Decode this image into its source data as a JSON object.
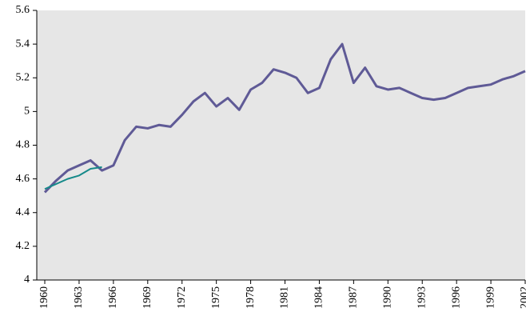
{
  "chart_data": {
    "type": "line",
    "x": [
      1960,
      1961,
      1962,
      1963,
      1964,
      1965,
      1966,
      1967,
      1968,
      1969,
      1970,
      1971,
      1972,
      1973,
      1974,
      1975,
      1976,
      1977,
      1978,
      1979,
      1980,
      1981,
      1982,
      1983,
      1984,
      1985,
      1986,
      1987,
      1988,
      1989,
      1990,
      1991,
      1992,
      1993,
      1994,
      1995,
      1996,
      1997,
      1998,
      1999,
      2000,
      2001,
      2002
    ],
    "series": [
      {
        "color": "#5f5a96",
        "values": [
          4.52,
          4.59,
          4.65,
          4.68,
          4.71,
          4.65,
          4.68,
          4.83,
          4.91,
          4.9,
          4.92,
          4.91,
          4.98,
          5.06,
          5.11,
          5.03,
          5.08,
          5.01,
          5.13,
          5.17,
          5.25,
          5.23,
          5.2,
          5.11,
          5.14,
          5.31,
          5.4,
          5.17,
          5.26,
          5.15,
          5.13,
          5.14,
          5.11,
          5.08,
          5.07,
          5.08,
          5.11,
          5.14,
          5.15,
          5.16,
          5.19,
          5.21,
          5.24
        ]
      },
      {
        "color": "#168a8a",
        "values": [
          4.54,
          4.57,
          4.6,
          4.62,
          4.66,
          4.67,
          null,
          null,
          null,
          null,
          null,
          null,
          null,
          null,
          null,
          null,
          null,
          null,
          null,
          null,
          null,
          null,
          null,
          null,
          null,
          null,
          null,
          null,
          null,
          null,
          null,
          null,
          null,
          null,
          null,
          null,
          null,
          null,
          null,
          null,
          null,
          null,
          null
        ]
      }
    ],
    "xlim": [
      1959.3,
      2002
    ],
    "xticks": [
      1960,
      1963,
      1966,
      1969,
      1972,
      1975,
      1978,
      1981,
      1984,
      1987,
      1990,
      1993,
      1996,
      1999,
      2002
    ],
    "ylim": [
      4,
      5.6
    ],
    "yticks": [
      4,
      4.2,
      4.4,
      4.6,
      4.8,
      5,
      5.2,
      5.4,
      5.6
    ],
    "plot_background": "#e6e6e6"
  }
}
